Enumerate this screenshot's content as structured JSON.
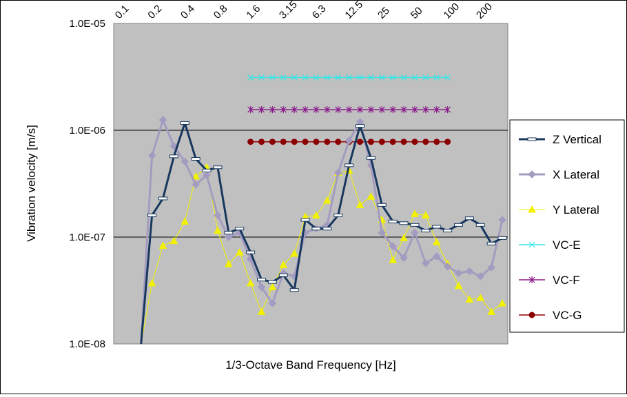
{
  "chart_data": {
    "type": "line",
    "title": "",
    "xlabel": "1/3-Octave Band Frequency [Hz]",
    "ylabel": "Vibration velocity [m/s]",
    "y_scale": "log",
    "ylim": [
      1e-08,
      1e-05
    ],
    "y_tick_labels": [
      "1.0E-05",
      "1.0E-06",
      "1.0E-07",
      "1.0E-08"
    ],
    "y_tick_values": [
      1e-05,
      1e-06,
      1e-07,
      1e-08
    ],
    "x_tick_labels": [
      "0.1",
      "0.2",
      "0.4",
      "0.8",
      "1.6",
      "3.15",
      "6.3",
      "12.5",
      "25",
      "50",
      "100",
      "200"
    ],
    "x_tick_bands": [
      0,
      3,
      6,
      9,
      12,
      15,
      18,
      21,
      24,
      27,
      30,
      33
    ],
    "band_count": 36,
    "grid": "horizontal major",
    "legend_position": "right",
    "series": [
      {
        "name": "Z Vertical",
        "color": "#17375E",
        "marker": "dash",
        "x_bands": [
          2,
          3,
          4,
          5,
          6,
          7,
          8,
          9,
          10,
          11,
          12,
          13,
          14,
          15,
          16,
          17,
          18,
          19,
          20,
          21,
          22,
          23,
          24,
          25,
          26,
          27,
          28,
          29,
          30,
          31,
          32,
          33,
          34,
          35
        ],
        "values": [
          1e-08,
          1.6e-07,
          2.3e-07,
          5.7e-07,
          1.17e-06,
          5.4e-07,
          4.2e-07,
          4.5e-07,
          1.1e-07,
          1.2e-07,
          7.2e-08,
          4e-08,
          3.8e-08,
          4.4e-08,
          3.2e-08,
          1.45e-07,
          1.2e-07,
          1.2e-07,
          1.6e-07,
          4.7e-07,
          1.1e-06,
          5.5e-07,
          2e-07,
          1.4e-07,
          1.35e-07,
          1.3e-07,
          1.15e-07,
          1.25e-07,
          1.15e-07,
          1.3e-07,
          1.5e-07,
          1.3e-07,
          8.7e-08,
          9.8e-08
        ]
      },
      {
        "name": "X Lateral",
        "color": "#A39BC0",
        "marker": "diamond",
        "x_bands": [
          2,
          3,
          4,
          5,
          6,
          7,
          8,
          9,
          10,
          11,
          12,
          13,
          14,
          15,
          16,
          17,
          18,
          19,
          20,
          21,
          22,
          23,
          24,
          25,
          26,
          27,
          28,
          29,
          30,
          31,
          32,
          33,
          34,
          35
        ],
        "values": [
          1e-08,
          5.8e-07,
          1.25e-06,
          7.1e-07,
          5.1e-07,
          3.1e-07,
          3.8e-07,
          1.6e-07,
          1e-07,
          1.1e-07,
          6.2e-08,
          3.4e-08,
          2.4e-08,
          4.6e-08,
          4.3e-08,
          1.1e-07,
          1.2e-07,
          1.3e-07,
          4e-07,
          8e-07,
          1.2e-06,
          4.7e-07,
          1.1e-07,
          8.2e-08,
          6.4e-08,
          1.1e-07,
          5.7e-08,
          6.6e-08,
          5.3e-08,
          4.6e-08,
          4.8e-08,
          4.3e-08,
          5.2e-08,
          1.45e-07
        ]
      },
      {
        "name": "Y Lateral",
        "color": "#F2F200",
        "marker": "triangle",
        "x_bands": [
          2,
          3,
          4,
          5,
          6,
          7,
          8,
          9,
          10,
          11,
          12,
          13,
          14,
          15,
          16,
          17,
          18,
          19,
          20,
          21,
          22,
          23,
          24,
          25,
          26,
          27,
          28,
          29,
          30,
          31,
          32,
          33,
          34,
          35
        ],
        "values": [
          1e-08,
          3.7e-08,
          8.3e-08,
          9.2e-08,
          1.4e-07,
          3.7e-07,
          4.5e-07,
          1.15e-07,
          5.6e-08,
          7.2e-08,
          3.7e-08,
          2e-08,
          3.4e-08,
          5.5e-08,
          7e-08,
          1.55e-07,
          1.6e-07,
          2.2e-07,
          4e-07,
          4.2e-07,
          2e-07,
          2.4e-07,
          1.45e-07,
          6.1e-08,
          9.8e-08,
          1.65e-07,
          1.6e-07,
          9e-08,
          5.6e-08,
          3.5e-08,
          2.6e-08,
          2.7e-08,
          2e-08,
          2.4e-08
        ]
      },
      {
        "name": "VC-E",
        "color": "#33E6E6",
        "marker": "x",
        "x_bands": [
          12,
          13,
          14,
          15,
          16,
          17,
          18,
          19,
          20,
          21,
          22,
          23,
          24,
          25,
          26,
          27,
          28,
          29,
          30
        ],
        "values": [
          3.12e-06,
          3.12e-06,
          3.12e-06,
          3.12e-06,
          3.12e-06,
          3.12e-06,
          3.12e-06,
          3.12e-06,
          3.12e-06,
          3.12e-06,
          3.12e-06,
          3.12e-06,
          3.12e-06,
          3.12e-06,
          3.12e-06,
          3.12e-06,
          3.12e-06,
          3.12e-06,
          3.12e-06
        ]
      },
      {
        "name": "VC-F",
        "color": "#8B1A8B",
        "marker": "star",
        "x_bands": [
          12,
          13,
          14,
          15,
          16,
          17,
          18,
          19,
          20,
          21,
          22,
          23,
          24,
          25,
          26,
          27,
          28,
          29,
          30
        ],
        "values": [
          1.56e-06,
          1.56e-06,
          1.56e-06,
          1.56e-06,
          1.56e-06,
          1.56e-06,
          1.56e-06,
          1.56e-06,
          1.56e-06,
          1.56e-06,
          1.56e-06,
          1.56e-06,
          1.56e-06,
          1.56e-06,
          1.56e-06,
          1.56e-06,
          1.56e-06,
          1.56e-06,
          1.56e-06
        ]
      },
      {
        "name": "VC-G",
        "color": "#8B0000",
        "marker": "circle",
        "x_bands": [
          12,
          13,
          14,
          15,
          16,
          17,
          18,
          19,
          20,
          21,
          22,
          23,
          24,
          25,
          26,
          27,
          28,
          29,
          30
        ],
        "values": [
          7.8e-07,
          7.8e-07,
          7.8e-07,
          7.8e-07,
          7.8e-07,
          7.8e-07,
          7.8e-07,
          7.8e-07,
          7.8e-07,
          7.8e-07,
          7.8e-07,
          7.8e-07,
          7.8e-07,
          7.8e-07,
          7.8e-07,
          7.8e-07,
          7.8e-07,
          7.8e-07,
          7.8e-07
        ]
      }
    ]
  }
}
